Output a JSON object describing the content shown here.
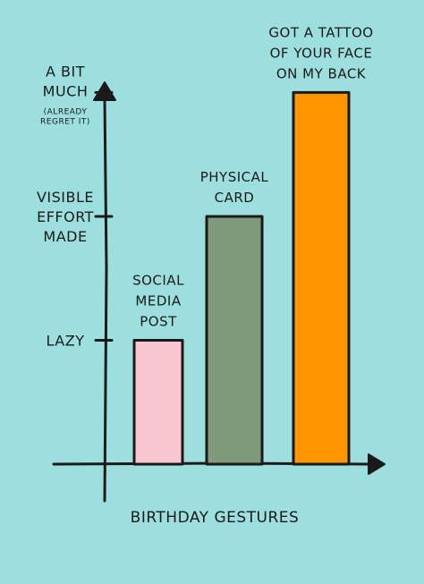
{
  "chart_data": {
    "type": "bar",
    "title": "",
    "xlabel": "BIRTHDAY GESTURES",
    "ylabel": "",
    "categories": [
      "SOCIAL MEDIA POST",
      "PHYSICAL CARD",
      "GOT A TATTOO OF YOUR FACE ON MY BACK"
    ],
    "category_lines": [
      [
        "SOCIAL",
        "MEDIA",
        "POST"
      ],
      [
        "PHYSICAL",
        "CARD"
      ],
      [
        "GOT A TATTOO",
        "OF YOUR FACE",
        "ON MY BACK"
      ]
    ],
    "values": [
      1,
      2,
      3
    ],
    "ylim": [
      0,
      3.4
    ],
    "bar_colors": [
      "#f7c6cf",
      "#7e9a7a",
      "#ff9600"
    ],
    "y_ticks": [
      {
        "value": 1,
        "lines": [
          "LAZY"
        ],
        "note": []
      },
      {
        "value": 2,
        "lines": [
          "VISIBLE",
          "EFFORT",
          "MADE"
        ],
        "note": []
      },
      {
        "value": 3,
        "lines": [
          "A BIT",
          "MUCH"
        ],
        "note": [
          "(ALREADY",
          "REGRET IT)"
        ]
      }
    ],
    "grid": false,
    "legend": "none"
  },
  "colors": {
    "background": "#9ddfdf",
    "ink": "#1a1a1a"
  }
}
